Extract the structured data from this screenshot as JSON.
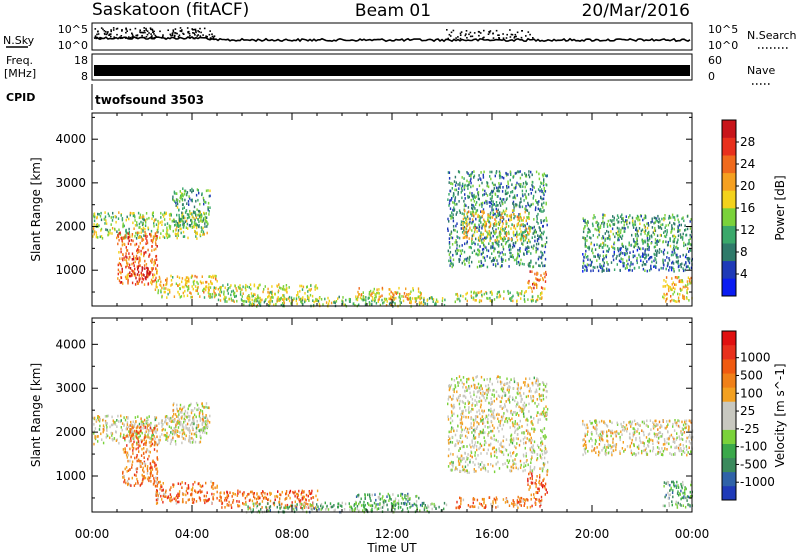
{
  "header": {
    "radar": "Saskatoon (fitACF)",
    "beam": "Beam 01",
    "date": "20/Mar/2016"
  },
  "summary_panel": {
    "nsky_label": "N.Sky",
    "nsearch_label": "N.Search",
    "freq_label_line1": "Freq.",
    "freq_label_line2": "[MHz]",
    "nave_label": "Nave",
    "cpid_label": "CPID",
    "cpid_name": "twofsound 3503",
    "noise_ticks": [
      "10^5",
      "10^0"
    ],
    "noise_ticks_right": [
      "10^5",
      "10^0"
    ],
    "freq_ticks": [
      "18",
      "8"
    ],
    "nave_ticks": [
      "60",
      "0"
    ]
  },
  "time_axis": {
    "label": "Time UT",
    "ticks": [
      "00:00",
      "04:00",
      "08:00",
      "12:00",
      "16:00",
      "20:00",
      "00:00"
    ]
  },
  "chart_data": [
    {
      "type": "heatmap",
      "title": "Power",
      "ylabel": "Slant Range [km]",
      "xlabel": "Time UT",
      "xlim_hours": [
        0,
        24
      ],
      "ylim": [
        180,
        4600
      ],
      "y_ticks": [
        1000,
        2000,
        3000,
        4000
      ],
      "colorbar": {
        "label": "Power [dB]",
        "ticks": [
          "4",
          "8",
          "12",
          "16",
          "20",
          "24",
          "28"
        ],
        "colors": [
          "#0a1cf2",
          "#1f3ab8",
          "#2f7a6a",
          "#3aa86a",
          "#7ad23a",
          "#f3d21c",
          "#f5a020",
          "#f06a1c",
          "#e8301c",
          "#c8141a"
        ]
      },
      "patches": [
        {
          "t0": 0.0,
          "t1": 4.6,
          "r0": 1750,
          "r1": 2350,
          "level": 0.45
        },
        {
          "t0": 1.0,
          "t1": 2.6,
          "r0": 700,
          "r1": 1900,
          "level": 0.75
        },
        {
          "t0": 1.4,
          "t1": 2.3,
          "r0": 800,
          "r1": 1100,
          "level": 0.95
        },
        {
          "t0": 2.5,
          "t1": 5.0,
          "r0": 400,
          "r1": 900,
          "level": 0.55
        },
        {
          "t0": 3.2,
          "t1": 4.7,
          "r0": 2000,
          "r1": 2900,
          "level": 0.35
        },
        {
          "t0": 5.0,
          "t1": 9.0,
          "r0": 300,
          "r1": 700,
          "level": 0.5
        },
        {
          "t0": 6.0,
          "t1": 14.2,
          "r0": 200,
          "r1": 420,
          "level": 0.45
        },
        {
          "t0": 10.5,
          "t1": 13.2,
          "r0": 350,
          "r1": 620,
          "level": 0.6
        },
        {
          "t0": 14.2,
          "t1": 18.2,
          "r0": 1100,
          "r1": 3300,
          "level": 0.3
        },
        {
          "t0": 14.8,
          "t1": 17.5,
          "r0": 1700,
          "r1": 2400,
          "level": 0.55
        },
        {
          "t0": 14.5,
          "t1": 18.0,
          "r0": 300,
          "r1": 550,
          "level": 0.5
        },
        {
          "t0": 17.4,
          "t1": 18.2,
          "r0": 600,
          "r1": 1000,
          "level": 0.75
        },
        {
          "t0": 19.6,
          "t1": 24.0,
          "r0": 1500,
          "r1": 2300,
          "level": 0.35
        },
        {
          "t0": 19.6,
          "t1": 24.0,
          "r0": 1000,
          "r1": 1500,
          "level": 0.25
        },
        {
          "t0": 22.8,
          "t1": 24.0,
          "r0": 300,
          "r1": 900,
          "level": 0.6
        }
      ]
    },
    {
      "type": "heatmap",
      "title": "Velocity",
      "ylabel": "Slant Range [km]",
      "xlabel": "Time UT",
      "xlim_hours": [
        0,
        24
      ],
      "ylim": [
        180,
        4600
      ],
      "y_ticks": [
        1000,
        2000,
        3000,
        4000
      ],
      "colorbar": {
        "label": "Velocity [m s^-1]",
        "ticks": [
          "1000",
          "500",
          "100",
          "25",
          "-25",
          "-100",
          "-500",
          "-1000"
        ],
        "colors": [
          "#1f3ab8",
          "#2f62a8",
          "#3a8a5c",
          "#3aa84a",
          "#7ad23a",
          "#c8c8c0",
          "#c8c8c0",
          "#f3a020",
          "#f08018",
          "#f05a10",
          "#e8301c",
          "#e01010"
        ]
      },
      "patches": [
        {
          "t0": 0.0,
          "t1": 4.6,
          "r0": 1750,
          "r1": 2400,
          "level": 0.5
        },
        {
          "t0": 1.2,
          "t1": 2.6,
          "r0": 800,
          "r1": 2200,
          "level": 0.72
        },
        {
          "t0": 2.5,
          "t1": 5.0,
          "r0": 400,
          "r1": 900,
          "level": 0.74
        },
        {
          "t0": 3.2,
          "t1": 4.7,
          "r0": 2000,
          "r1": 2700,
          "level": 0.5
        },
        {
          "t0": 5.0,
          "t1": 9.0,
          "r0": 300,
          "r1": 700,
          "level": 0.76
        },
        {
          "t0": 6.0,
          "t1": 14.2,
          "r0": 200,
          "r1": 420,
          "level": 0.32
        },
        {
          "t0": 10.5,
          "t1": 13.2,
          "r0": 350,
          "r1": 620,
          "level": 0.3
        },
        {
          "t0": 14.2,
          "t1": 18.2,
          "r0": 1100,
          "r1": 3300,
          "level": 0.5
        },
        {
          "t0": 14.5,
          "t1": 18.0,
          "r0": 300,
          "r1": 550,
          "level": 0.72
        },
        {
          "t0": 17.4,
          "t1": 18.2,
          "r0": 600,
          "r1": 1100,
          "level": 0.8
        },
        {
          "t0": 19.6,
          "t1": 24.0,
          "r0": 1500,
          "r1": 2300,
          "level": 0.52
        },
        {
          "t0": 22.8,
          "t1": 24.0,
          "r0": 300,
          "r1": 900,
          "level": 0.3
        }
      ]
    }
  ]
}
